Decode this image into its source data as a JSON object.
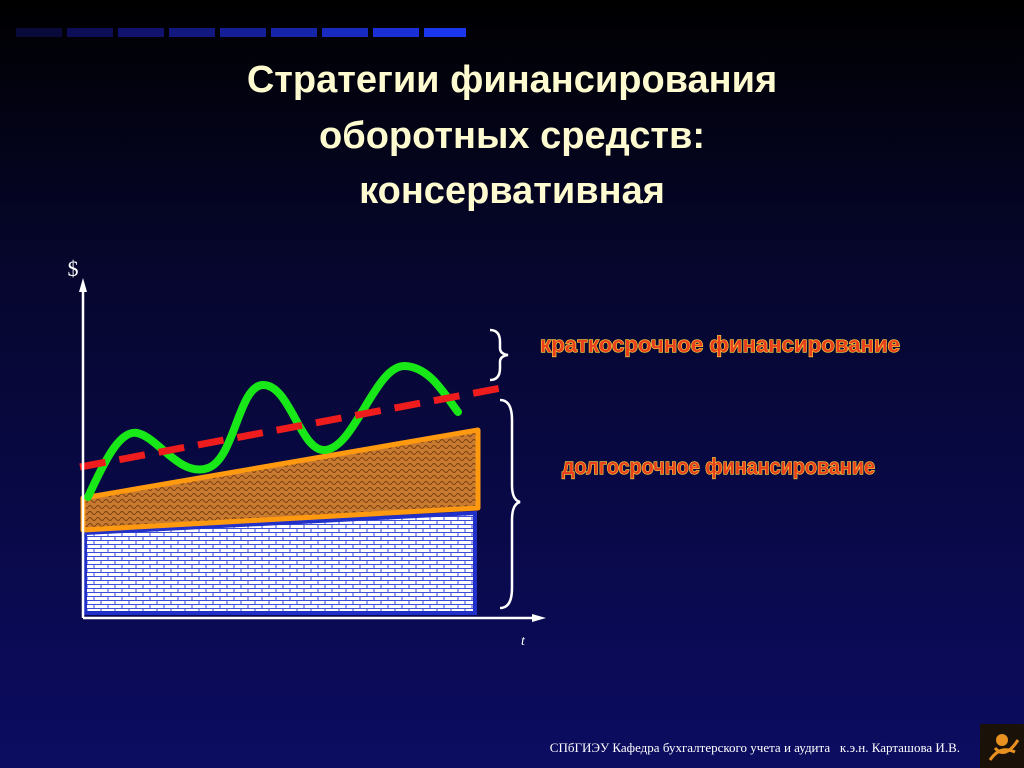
{
  "title": {
    "lines": [
      "Стратегии финансирования",
      "оборотных средств:",
      "консервативная"
    ]
  },
  "diagram": {
    "y_axis_label": "$",
    "x_axis_label": "t",
    "short_term_label": "краткосрочное финансирование",
    "long_term_label": "долгосрочное финансирование"
  },
  "footer": "СПбГИЭУ Кафедра бухгалтерского учета и аудита   к.э.н. Карташова И.В."
}
